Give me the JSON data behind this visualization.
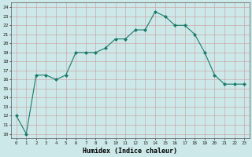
{
  "x": [
    0,
    1,
    2,
    3,
    4,
    5,
    6,
    7,
    8,
    9,
    10,
    11,
    12,
    13,
    14,
    15,
    16,
    17,
    18,
    19,
    20,
    21,
    22,
    23
  ],
  "y": [
    12,
    10,
    16.5,
    16.5,
    16,
    16.5,
    19,
    19,
    19,
    19.5,
    20.5,
    20.5,
    21.5,
    21.5,
    23.5,
    23,
    22,
    22,
    21,
    19,
    16.5,
    15.5,
    15.5,
    15.5
  ],
  "line_color": "#1a7a6a",
  "marker_color": "#1a7a6a",
  "bg_color": "#cce8e8",
  "grid_color": "#aaaacc",
  "xlabel": "Humidex (Indice chaleur)",
  "xlim": [
    -0.5,
    23.5
  ],
  "ylim": [
    9.5,
    24.5
  ],
  "yticks": [
    10,
    11,
    12,
    13,
    14,
    15,
    16,
    17,
    18,
    19,
    20,
    21,
    22,
    23,
    24
  ],
  "xticks": [
    0,
    1,
    2,
    3,
    4,
    5,
    6,
    7,
    8,
    9,
    10,
    11,
    12,
    13,
    14,
    15,
    16,
    17,
    18,
    19,
    20,
    21,
    22,
    23
  ]
}
